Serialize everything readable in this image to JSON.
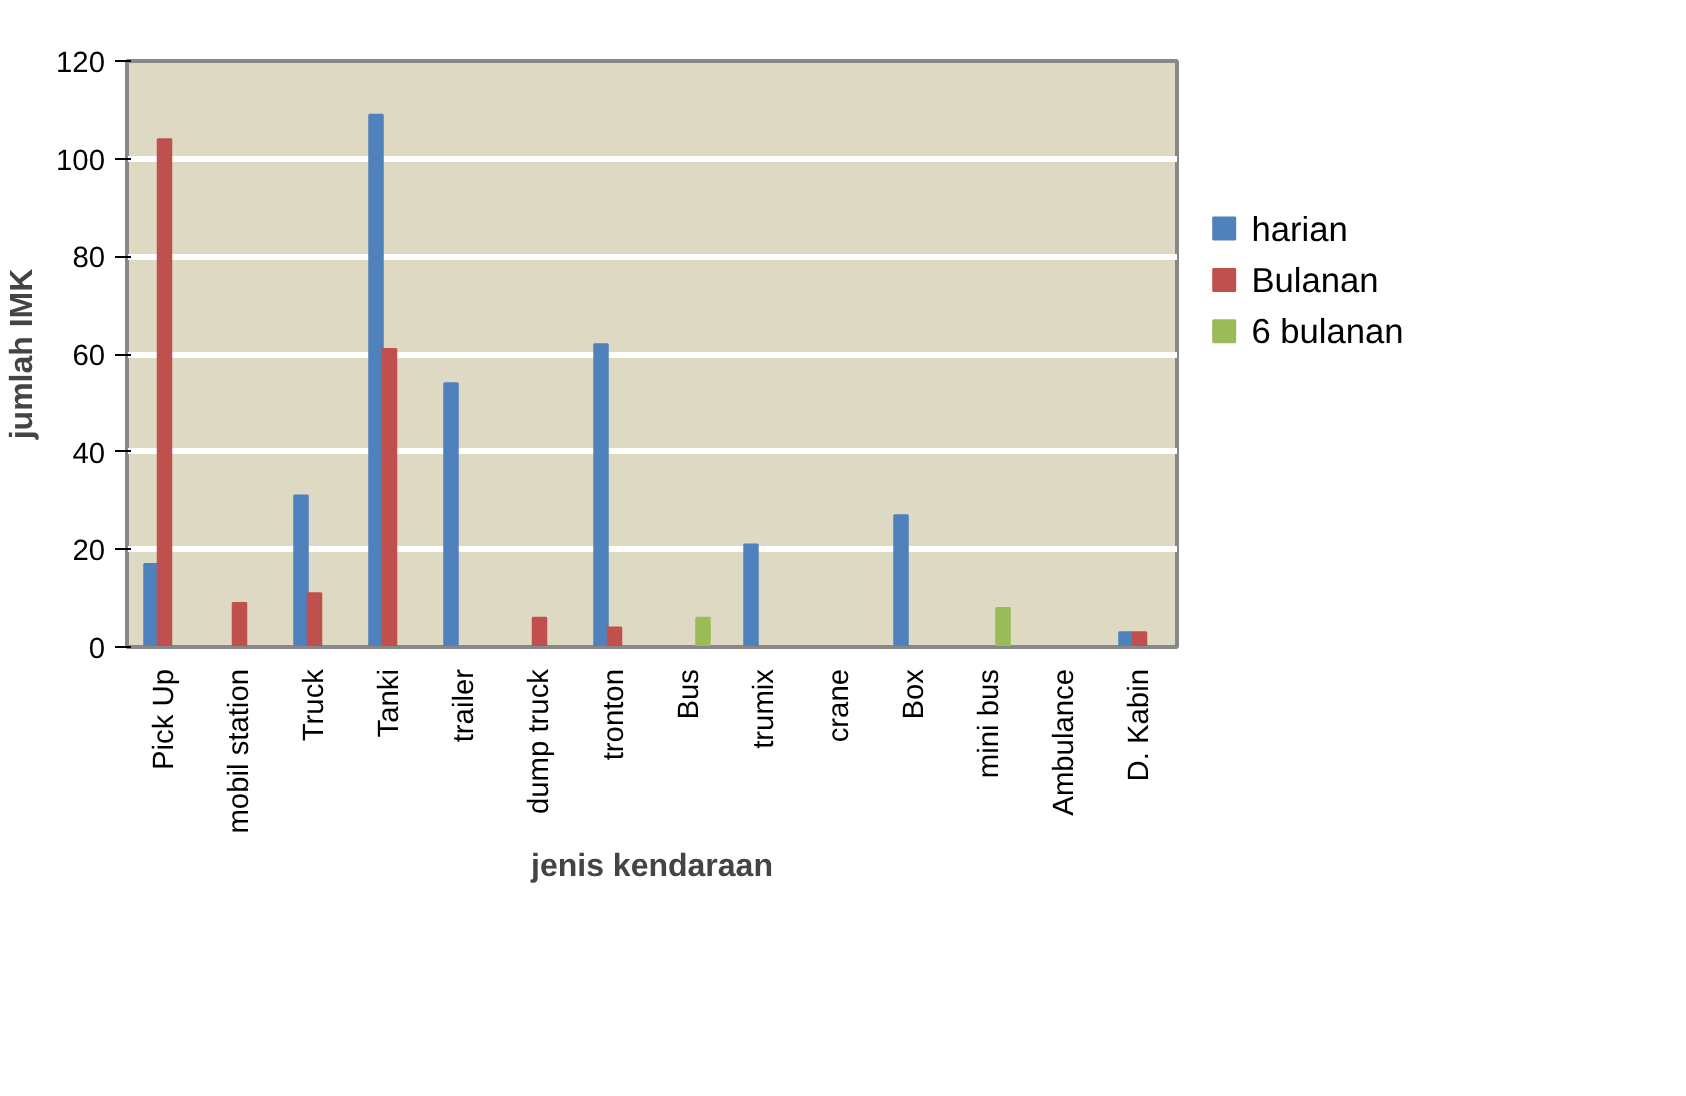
{
  "chart_data": {
    "type": "bar",
    "xlabel": "jenis kendaraan",
    "ylabel": "jumlah IMK",
    "categories": [
      "Pick Up",
      "mobil station",
      "Truck",
      "Tanki",
      "trailer",
      "dump truck",
      "tronton",
      "Bus",
      "trumix",
      "crane",
      "Box",
      "mini bus",
      "Ambulance",
      "D. Kabin"
    ],
    "series": [
      {
        "name": "harian",
        "color": "#4f81bd",
        "values": [
          17,
          null,
          31,
          109,
          54,
          null,
          62,
          null,
          21,
          null,
          27,
          null,
          null,
          3
        ]
      },
      {
        "name": "Bulanan",
        "color": "#c0504d",
        "values": [
          104,
          9,
          11,
          61,
          null,
          6,
          4,
          null,
          null,
          null,
          null,
          null,
          null,
          3
        ]
      },
      {
        "name": "6 bulanan",
        "color": "#9bbb59",
        "values": [
          null,
          null,
          null,
          null,
          null,
          null,
          null,
          6,
          null,
          null,
          null,
          8,
          null,
          null
        ]
      }
    ],
    "ylim": [
      0,
      120
    ],
    "yticks": [
      0,
      20,
      40,
      60,
      80,
      100,
      120
    ],
    "grid": "y",
    "legend": "right"
  }
}
